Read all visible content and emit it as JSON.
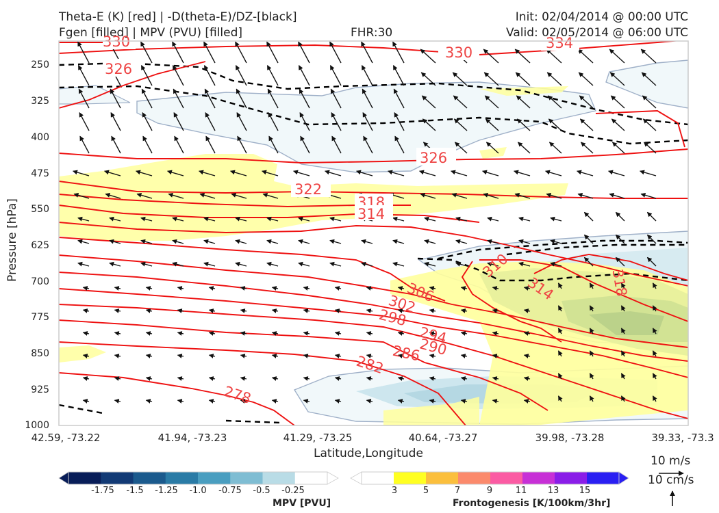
{
  "header": {
    "title_line1": "Theta-E (K) [red] | -D(theta-E)/DZ-[black]",
    "title_line2": "Fgen [filled] | MPV (PVU) [filled]",
    "fhr": "FHR:30",
    "init": "Init: 02/04/2014 @ 00:00 UTC",
    "valid": "Valid: 02/05/2014 @ 06:00 UTC"
  },
  "chart_data": {
    "type": "cross-section",
    "xlabel": "Latitude,Longitude",
    "ylabel": "Pressure [hPa]",
    "x_ticks": [
      "42.59, -73.22",
      "41.94, -73.23",
      "41.29, -73.25",
      "40.64, -73.27",
      "39.98, -73.28",
      "39.33, -73.3"
    ],
    "y_ticks": [
      250,
      325,
      400,
      475,
      550,
      625,
      700,
      775,
      850,
      925,
      1000
    ],
    "ylim": [
      1000,
      200
    ],
    "theta_e_contours_K": [
      278,
      282,
      286,
      290,
      294,
      298,
      302,
      306,
      310,
      314,
      318,
      322,
      326,
      330,
      334
    ],
    "theta_e_color": "#ee1111",
    "stability_color": "#000000",
    "wind_reference": {
      "horizontal": "10 m/s",
      "vertical": "10 cm/s"
    },
    "mpv_colorbar": {
      "label": "MPV [PVU]",
      "ticks": [
        "-1.75",
        "-1.5",
        "-1.25",
        "-1.0",
        "-0.75",
        "-0.5",
        "-0.25"
      ],
      "colors": [
        "#081d58",
        "#123a75",
        "#1b5a8d",
        "#2a7ba6",
        "#4a9ec0",
        "#7fbdd3",
        "#b9dce6",
        "#ffffff"
      ]
    },
    "fgen_colorbar": {
      "label": "Frontogenesis [K/100km/3hr]",
      "ticks": [
        "3",
        "5",
        "7",
        "9",
        "11",
        "13",
        "15"
      ],
      "colors": [
        "#ffffff",
        "#ffff22",
        "#fbbf3d",
        "#fb8a6c",
        "#fb5ba3",
        "#c730d6",
        "#8a1de8",
        "#2a1ff2"
      ]
    }
  }
}
